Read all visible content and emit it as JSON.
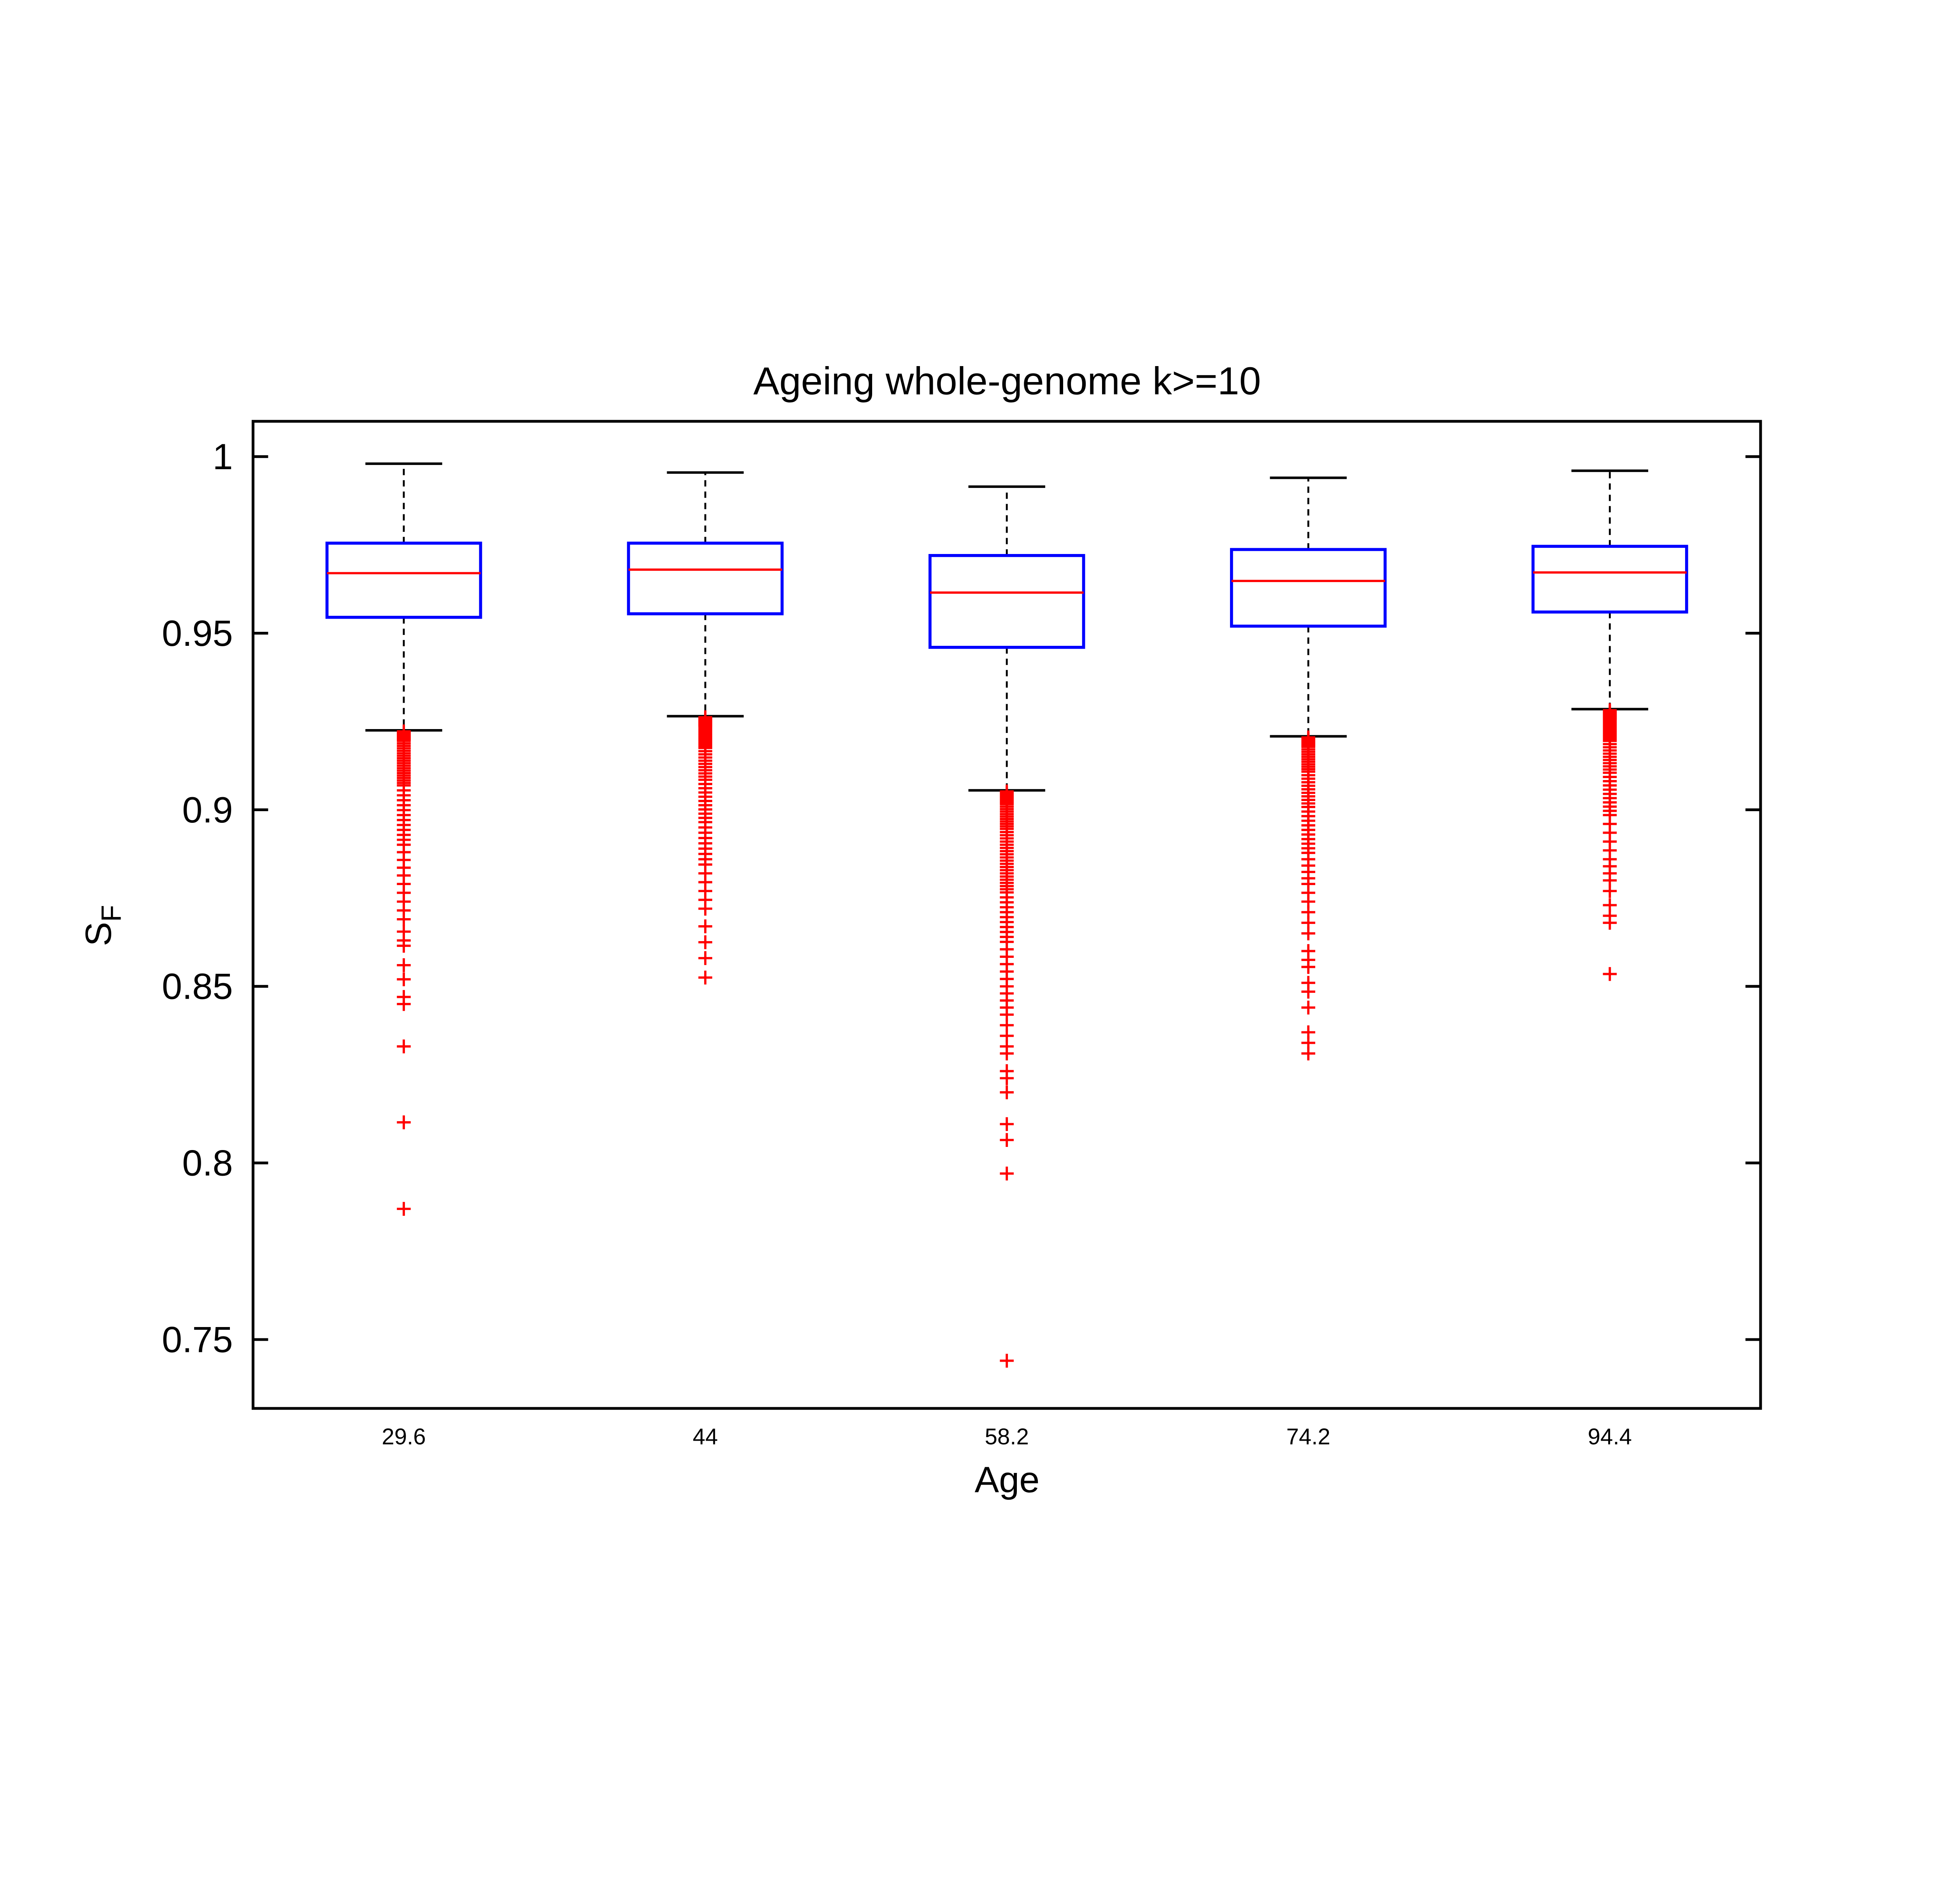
{
  "chart_data": {
    "type": "boxplot",
    "title": "Ageing whole-genome k>=10",
    "xlabel": "Age",
    "ylabel": "S_F",
    "ylabel_main": "S",
    "ylabel_sub": "F",
    "categories": [
      "29.6",
      "44",
      "58.2",
      "74.2",
      "94.4"
    ],
    "xlim": [
      0.5,
      5.5
    ],
    "ylim": [
      0.7305,
      1.01
    ],
    "yticks": [
      0.75,
      0.8,
      0.85,
      0.9,
      0.95,
      1
    ],
    "ytick_labels": [
      "0.75",
      "0.8",
      "0.85",
      "0.9",
      "0.95",
      "1"
    ],
    "grid": false,
    "legend": "none",
    "colors": {
      "box": "#0000ff",
      "median": "#ff0000",
      "outlier": "#ff0000",
      "whisker": "#000000",
      "axis": "#000000",
      "background": "#ffffff"
    },
    "series": [
      {
        "position": 1,
        "label": "29.6",
        "whisker_low": 0.9225,
        "q1": 0.9545,
        "median": 0.967,
        "q3": 0.9755,
        "whisker_high": 0.998,
        "outliers": [
          0.9222,
          0.9219,
          0.9216,
          0.9213,
          0.921,
          0.9207,
          0.9204,
          0.9201,
          0.9198,
          0.9195,
          0.9188,
          0.9181,
          0.9174,
          0.9167,
          0.916,
          0.9153,
          0.9146,
          0.9139,
          0.9132,
          0.9125,
          0.9118,
          0.9111,
          0.9104,
          0.9097,
          0.909,
          0.9083,
          0.9076,
          0.9069,
          0.9055,
          0.9041,
          0.9027,
          0.9013,
          0.8999,
          0.8985,
          0.8971,
          0.8957,
          0.8943,
          0.8929,
          0.8915,
          0.8901,
          0.888,
          0.8858,
          0.8836,
          0.8814,
          0.879,
          0.8765,
          0.874,
          0.8715,
          0.869,
          0.8655,
          0.863,
          0.8615,
          0.856,
          0.852,
          0.847,
          0.845,
          0.833,
          0.8115,
          0.787
        ]
      },
      {
        "position": 2,
        "label": "44",
        "whisker_low": 0.9265,
        "q1": 0.9555,
        "median": 0.968,
        "q3": 0.9755,
        "whisker_high": 0.9955,
        "outliers": [
          0.9262,
          0.9259,
          0.9256,
          0.9253,
          0.925,
          0.9247,
          0.9244,
          0.9241,
          0.9238,
          0.9235,
          0.9229,
          0.9223,
          0.9217,
          0.9211,
          0.9205,
          0.9199,
          0.9193,
          0.9187,
          0.9181,
          0.9175,
          0.9166,
          0.9157,
          0.9148,
          0.9139,
          0.913,
          0.9121,
          0.9112,
          0.9103,
          0.9094,
          0.9085,
          0.9073,
          0.9061,
          0.9049,
          0.9037,
          0.9025,
          0.9013,
          0.9001,
          0.8989,
          0.8977,
          0.8965,
          0.895,
          0.8935,
          0.892,
          0.8905,
          0.889,
          0.8875,
          0.886,
          0.8845,
          0.882,
          0.8795,
          0.877,
          0.8745,
          0.872,
          0.867,
          0.8625,
          0.858,
          0.8525
        ]
      },
      {
        "position": 3,
        "label": "58.2",
        "whisker_low": 0.9055,
        "q1": 0.946,
        "median": 0.9615,
        "q3": 0.972,
        "whisker_high": 0.9915,
        "outliers": [
          0.9052,
          0.9048,
          0.9044,
          0.904,
          0.9036,
          0.9032,
          0.9028,
          0.9024,
          0.902,
          0.9016,
          0.9009,
          0.9002,
          0.8995,
          0.8988,
          0.8981,
          0.8974,
          0.8967,
          0.896,
          0.8953,
          0.8946,
          0.8937,
          0.8928,
          0.8919,
          0.891,
          0.8901,
          0.8892,
          0.8883,
          0.8874,
          0.8865,
          0.8856,
          0.8847,
          0.8838,
          0.8829,
          0.882,
          0.8811,
          0.8802,
          0.8793,
          0.8784,
          0.8775,
          0.8766,
          0.8752,
          0.8738,
          0.8724,
          0.871,
          0.8696,
          0.8682,
          0.8668,
          0.8654,
          0.864,
          0.8626,
          0.8605,
          0.8584,
          0.8563,
          0.8542,
          0.8521,
          0.85,
          0.848,
          0.846,
          0.844,
          0.842,
          0.839,
          0.836,
          0.833,
          0.831,
          0.826,
          0.824,
          0.82,
          0.811,
          0.8065,
          0.797,
          0.744
        ]
      },
      {
        "position": 4,
        "label": "74.2",
        "whisker_low": 0.9208,
        "q1": 0.952,
        "median": 0.9648,
        "q3": 0.9737,
        "whisker_high": 0.994,
        "outliers": [
          0.9205,
          0.9202,
          0.9199,
          0.9196,
          0.9193,
          0.919,
          0.9187,
          0.9184,
          0.9181,
          0.9178,
          0.9171,
          0.9164,
          0.9157,
          0.915,
          0.9143,
          0.9136,
          0.9129,
          0.9122,
          0.9115,
          0.9108,
          0.9098,
          0.9088,
          0.9078,
          0.9068,
          0.9058,
          0.9048,
          0.9038,
          0.9028,
          0.9018,
          0.9008,
          0.8995,
          0.8982,
          0.8969,
          0.8956,
          0.8943,
          0.893,
          0.8917,
          0.8904,
          0.8891,
          0.8878,
          0.886,
          0.8842,
          0.8824,
          0.8806,
          0.879,
          0.8765,
          0.874,
          0.871,
          0.868,
          0.865,
          0.86,
          0.8575,
          0.8555,
          0.851,
          0.8485,
          0.844,
          0.837,
          0.834,
          0.831
        ]
      },
      {
        "position": 5,
        "label": "94.4",
        "whisker_low": 0.9285,
        "q1": 0.956,
        "median": 0.9672,
        "q3": 0.9746,
        "whisker_high": 0.996,
        "outliers": [
          0.9282,
          0.9279,
          0.9276,
          0.9273,
          0.927,
          0.9267,
          0.9264,
          0.9261,
          0.9258,
          0.9255,
          0.9249,
          0.9243,
          0.9237,
          0.9231,
          0.9225,
          0.9219,
          0.9213,
          0.9207,
          0.9201,
          0.9195,
          0.9186,
          0.9177,
          0.9168,
          0.9159,
          0.915,
          0.9141,
          0.9132,
          0.9123,
          0.9114,
          0.9105,
          0.9093,
          0.9081,
          0.9069,
          0.9057,
          0.9045,
          0.9033,
          0.9021,
          0.9009,
          0.8997,
          0.8985,
          0.896,
          0.8935,
          0.891,
          0.8885,
          0.886,
          0.884,
          0.882,
          0.88,
          0.877,
          0.873,
          0.87,
          0.868,
          0.8535
        ]
      }
    ]
  }
}
